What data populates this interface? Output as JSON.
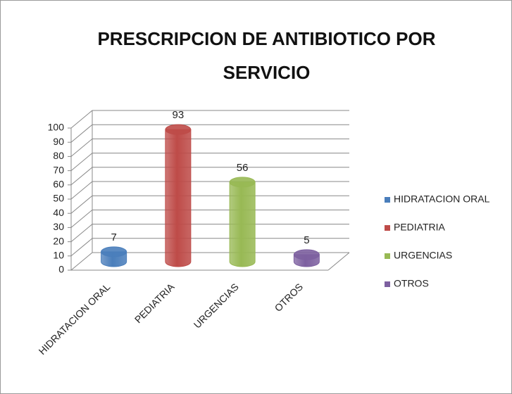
{
  "chart_data": {
    "type": "bar3d",
    "title": "PRESCRIPCION DE ANTIBIOTICO POR SERVICIO",
    "categories": [
      "HIDRATACION ORAL",
      "PEDIATRIA",
      "URGENCIAS",
      "OTROS"
    ],
    "values": [
      7,
      93,
      56,
      5
    ],
    "colors": [
      "#4a7ebb",
      "#be4b48",
      "#98b954",
      "#7d60a0"
    ],
    "ylim": [
      0,
      100
    ],
    "yticks": [
      0,
      10,
      20,
      30,
      40,
      50,
      60,
      70,
      80,
      90,
      100
    ],
    "grid": true,
    "legend": "right"
  }
}
